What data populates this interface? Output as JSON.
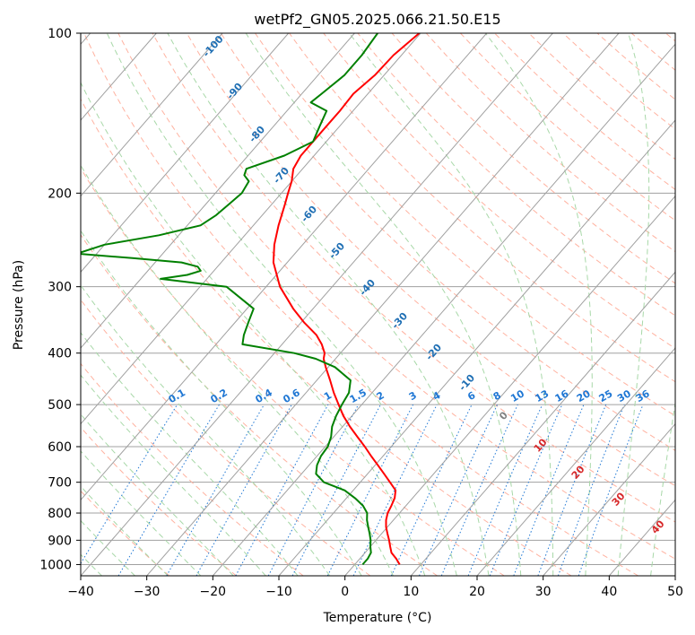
{
  "chart_data": {
    "type": "skew-t",
    "title": "wetPf2_GN05.2025.066.21.50.E15",
    "xlabel": "Temperature (°C)",
    "ylabel": "Pressure (hPa)",
    "xlim": [
      -40,
      50
    ],
    "ylim": [
      1050,
      100
    ],
    "y_scale": "log",
    "grid": true,
    "x_ticks": [
      -40,
      -30,
      -20,
      -10,
      0,
      10,
      20,
      30,
      40,
      50
    ],
    "y_ticks": [
      100,
      200,
      300,
      400,
      500,
      600,
      700,
      800,
      900,
      1000
    ],
    "series": [
      {
        "color": "#ff0000",
        "pressure": [
          1000,
          975,
          950,
          925,
          900,
          875,
          850,
          825,
          800,
          775,
          750,
          725,
          700,
          675,
          650,
          625,
          600,
          575,
          550,
          525,
          500,
          475,
          450,
          425,
          410,
          400,
          385,
          370,
          350,
          330,
          300,
          270,
          250,
          230,
          210,
          200,
          190,
          180,
          170,
          160,
          150,
          140,
          130,
          120,
          110,
          100
        ],
        "values": [
          6.8,
          5.5,
          4.0,
          3.0,
          2.0,
          0.9,
          -0.2,
          -1.1,
          -1.8,
          -2.2,
          -2.7,
          -3.6,
          -5.5,
          -7.5,
          -9.6,
          -11.8,
          -14.0,
          -16.4,
          -18.9,
          -21.3,
          -23.5,
          -25.8,
          -28.0,
          -30.4,
          -31.8,
          -32.4,
          -34.0,
          -36.0,
          -39.6,
          -43.0,
          -47.9,
          -52.1,
          -54.3,
          -56.2,
          -58.0,
          -59.0,
          -60.0,
          -61.4,
          -62.0,
          -62.0,
          -62.0,
          -62.0,
          -62.2,
          -61.4,
          -61.2,
          -60.2
        ]
      },
      {
        "color": "#008000",
        "pressure": [
          1000,
          975,
          950,
          925,
          900,
          875,
          850,
          825,
          800,
          775,
          750,
          725,
          700,
          675,
          650,
          625,
          600,
          575,
          550,
          525,
          500,
          475,
          450,
          425,
          410,
          400,
          385,
          370,
          350,
          330,
          300,
          290,
          285,
          280,
          275,
          270,
          265,
          260,
          250,
          240,
          230,
          220,
          210,
          200,
          190,
          185,
          180,
          170,
          160,
          150,
          140,
          135,
          130,
          120,
          110,
          100
        ],
        "values": [
          1.2,
          1.2,
          0.9,
          0.0,
          -0.8,
          -1.8,
          -2.9,
          -4.0,
          -4.9,
          -6.5,
          -8.7,
          -11.3,
          -15.5,
          -17.8,
          -18.8,
          -19.4,
          -19.6,
          -20.4,
          -21.6,
          -22.4,
          -23.0,
          -23.5,
          -24.9,
          -29.0,
          -33.0,
          -37.0,
          -46.0,
          -47.0,
          -48.0,
          -49.0,
          -56.0,
          -67.0,
          -63.5,
          -62.0,
          -63.0,
          -66.0,
          -74.0,
          -83.0,
          -80.0,
          -73.0,
          -68.0,
          -67.0,
          -66.5,
          -66.0,
          -66.5,
          -68.0,
          -68.5,
          -64.5,
          -62.0,
          -63.0,
          -64.0,
          -67.5,
          -67.0,
          -66.0,
          -66.0,
          -66.5
        ]
      }
    ],
    "dry_adiabat_labels": [
      "-100",
      "-90",
      "-80",
      "-70",
      "-60",
      "-50",
      "-40",
      "-30",
      "-20",
      "-10"
    ],
    "mixing_ratio_labels": [
      "0.1",
      "0.2",
      "0.4",
      "0.6",
      "1",
      "1.5",
      "2",
      "3",
      "4",
      "6",
      "8",
      "10",
      "13",
      "16",
      "20",
      "25",
      "30",
      "36"
    ],
    "moist_adiabat_labels": [
      "0",
      "10",
      "20",
      "30",
      "40"
    ],
    "colors": {
      "temperature": "#ff0000",
      "dewpoint": "#008000",
      "dry_adiabat": "#ffb2a0",
      "moist_adiabat": "#a8d8a8",
      "mixing_ratio": "#1f77d4",
      "isotherm": "#a0a0a0",
      "dry_label": "#1f6fb4",
      "moist_label": "#d62728"
    }
  }
}
